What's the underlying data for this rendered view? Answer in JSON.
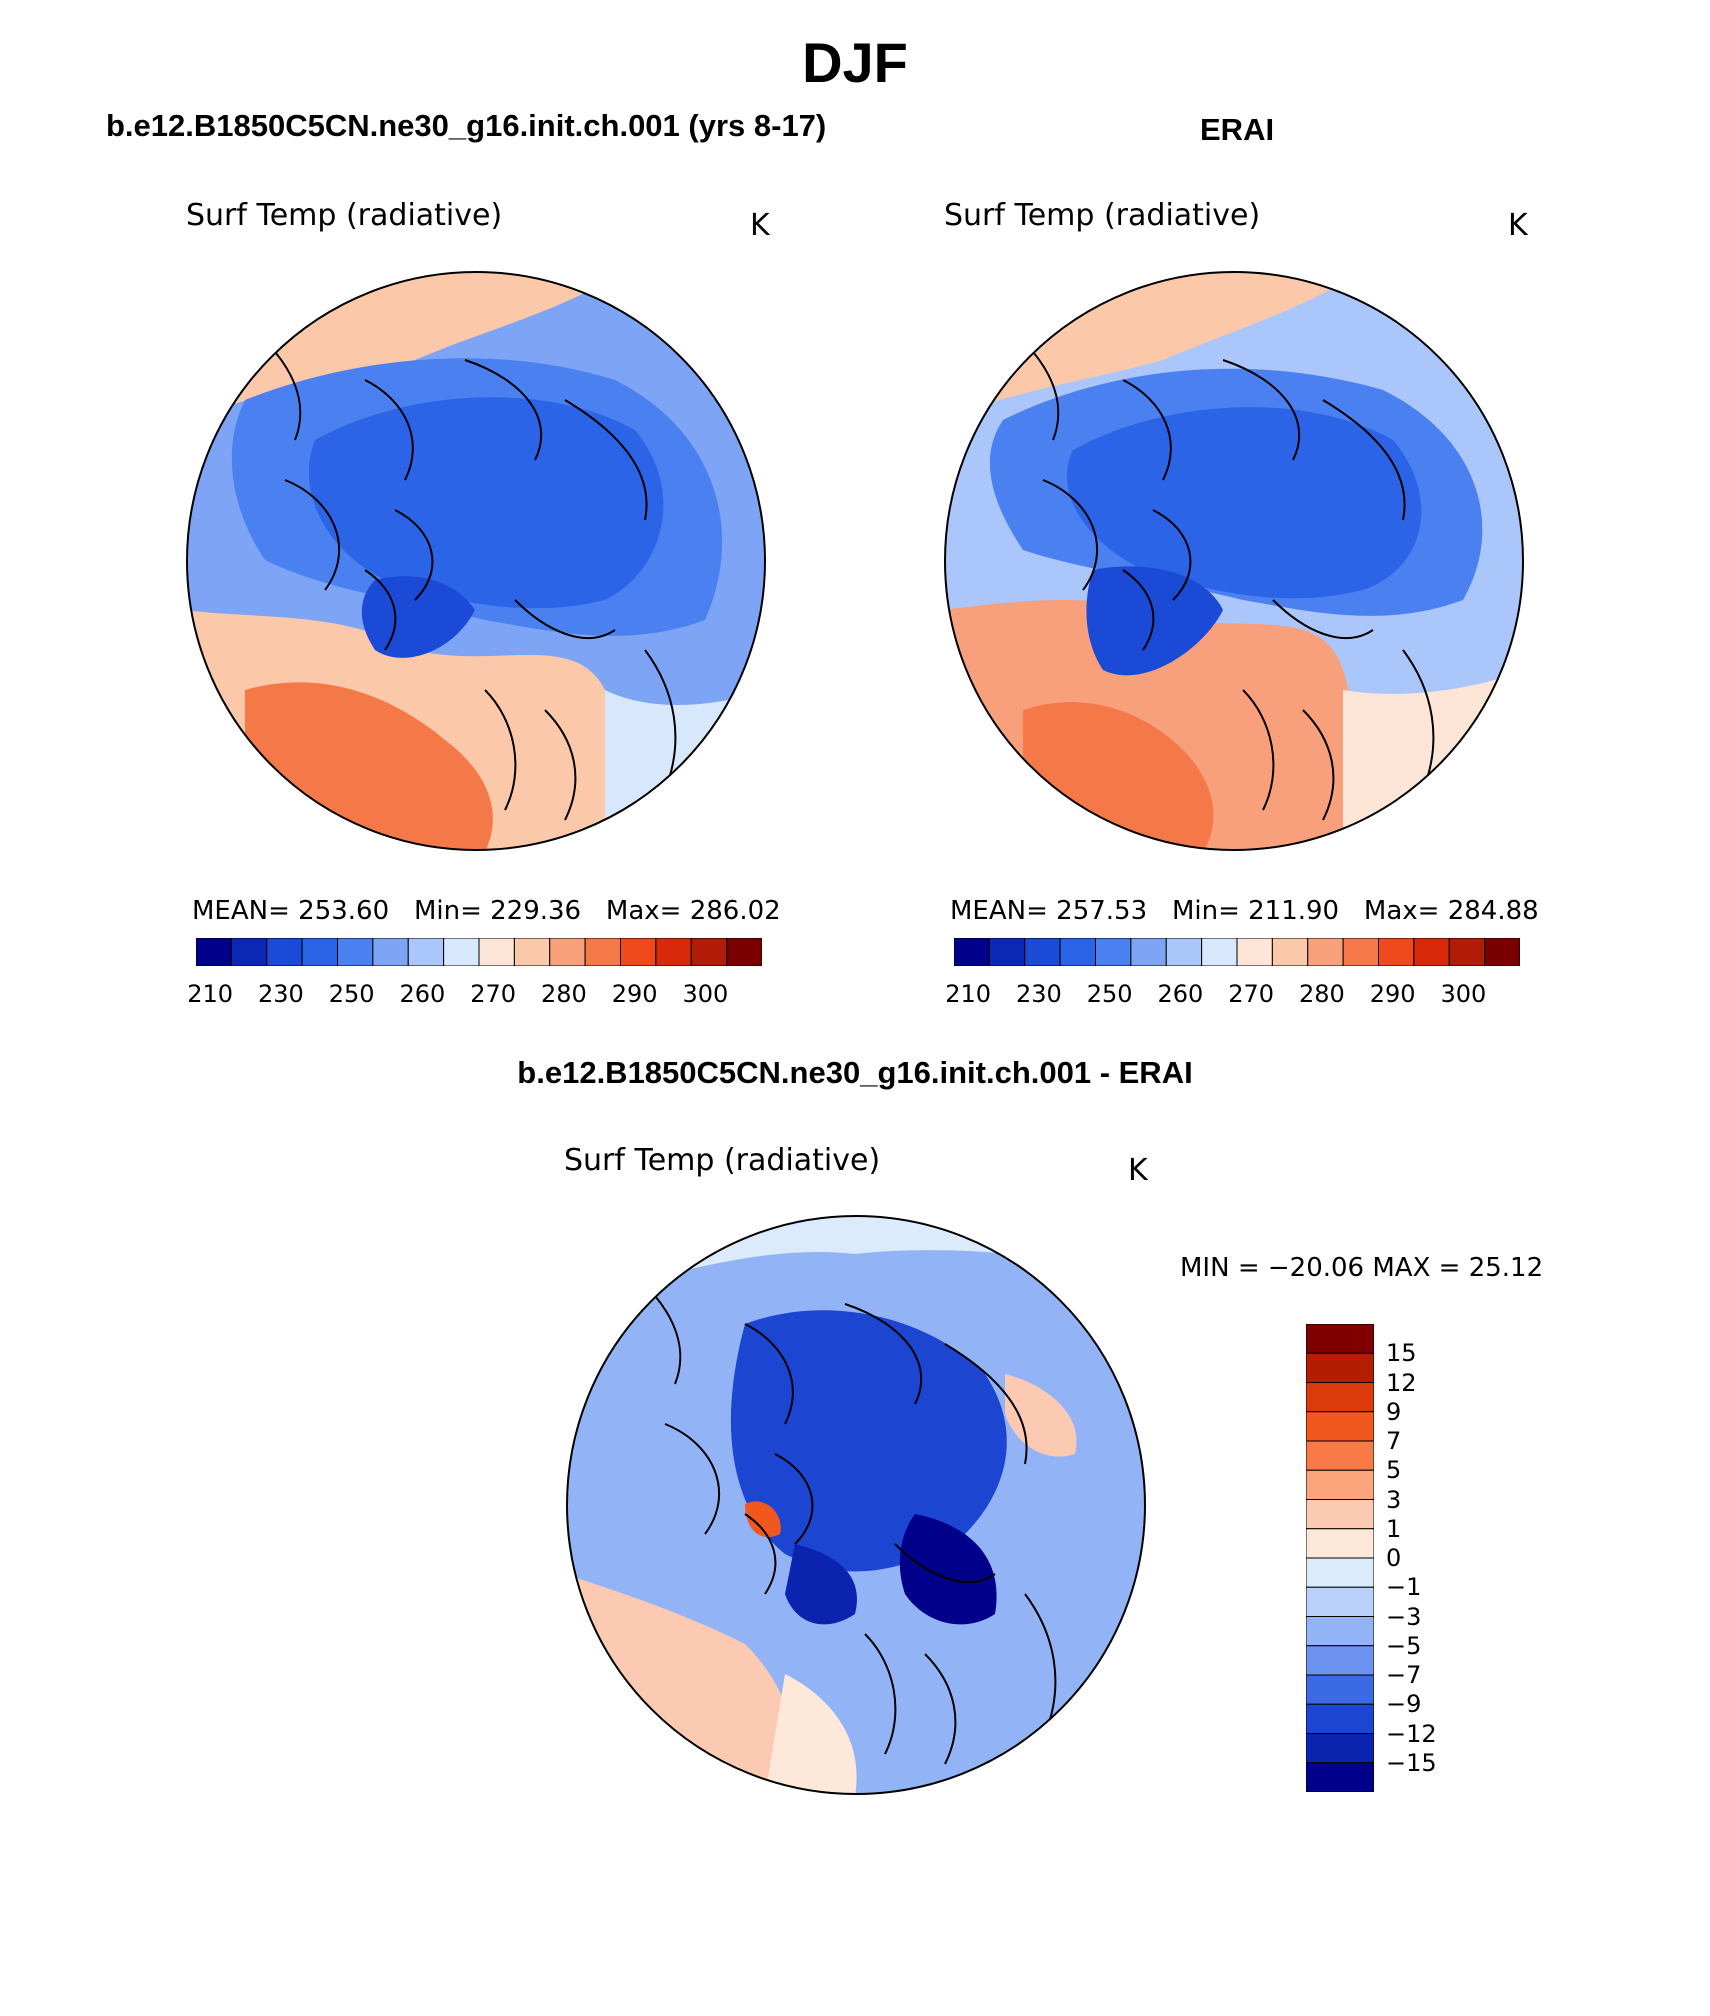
{
  "figure": {
    "season": "DJF"
  },
  "panels": [
    {
      "case_title": "b.e12.B1850C5CN.ne30_g16.init.ch.001 (yrs 8-17)",
      "variable": "Surf Temp (radiative)",
      "units": "K",
      "stats": {
        "mean_label": "MEAN=",
        "mean": "253.60",
        "min_label": "Min=",
        "min": "229.36",
        "max_label": "Max=",
        "max": "286.02"
      }
    },
    {
      "case_title": "ERAI",
      "variable": "Surf Temp (radiative)",
      "units": "K",
      "stats": {
        "mean_label": "MEAN=",
        "mean": "257.53",
        "min_label": "Min=",
        "min": "211.90",
        "max_label": "Max=",
        "max": "284.88"
      }
    },
    {
      "case_title": "b.e12.B1850C5CN.ne30_g16.init.ch.001 - ERAI",
      "variable": "Surf Temp (radiative)",
      "units": "K",
      "minmax_text": "MIN = −20.06 MAX =   25.12"
    }
  ],
  "colorbar_abs": {
    "colors": [
      "#00008b",
      "#0a28b4",
      "#1a4ad6",
      "#2c64e8",
      "#4a80f0",
      "#7ea4f6",
      "#aac6fa",
      "#d8e8fc",
      "#fde6d8",
      "#fbc8aa",
      "#f8a07c",
      "#f57848",
      "#f04a1c",
      "#d82a0a",
      "#b01c08",
      "#7a0000"
    ],
    "tick_labels": [
      "210",
      "230",
      "250",
      "260",
      "270",
      "280",
      "290",
      "300"
    ]
  },
  "colorbar_diff": {
    "colors_top_to_bottom": [
      "#800000",
      "#b41e00",
      "#dc3a0a",
      "#f0581e",
      "#f87a46",
      "#fca47c",
      "#fccab2",
      "#fde8da",
      "#dcebfc",
      "#b8d0fa",
      "#92b4f6",
      "#6c92f0",
      "#3c6ae4",
      "#1c46d2",
      "#0a24b0",
      "#00008b"
    ],
    "tick_labels_top_to_bottom": [
      "15",
      "12",
      "9",
      "7",
      "5",
      "3",
      "1",
      "0",
      "−1",
      "−3",
      "−5",
      "−7",
      "−9",
      "−12",
      "−15"
    ]
  },
  "map_colors": {
    "ocean_warm": "#f8a07c",
    "ocean_hot": "#f57848",
    "land_cold": "#4a80f0",
    "ice_core": "#2c64e8",
    "diff_base": "#7ea4f6",
    "diff_deep": "#1a4ad6",
    "coast": "#000000"
  }
}
